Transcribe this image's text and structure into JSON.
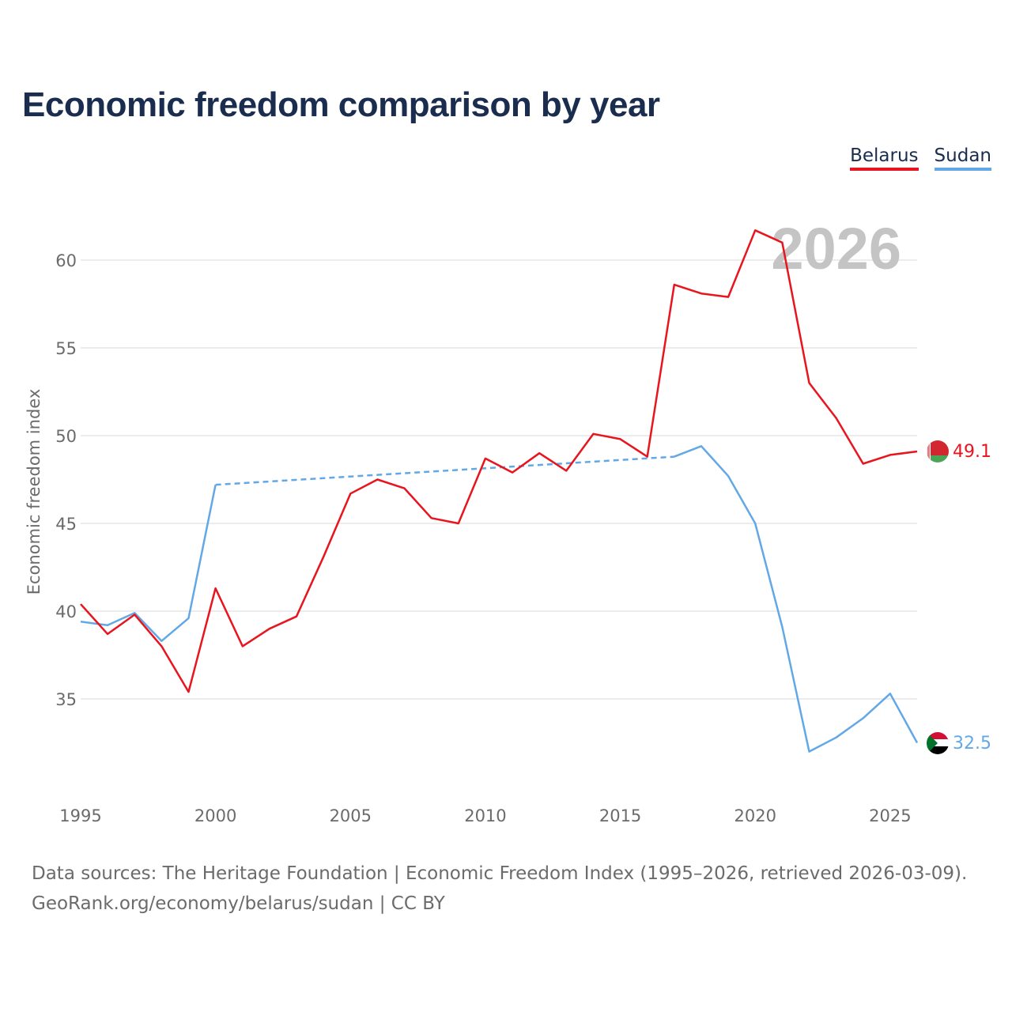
{
  "chart_data": {
    "type": "line",
    "title": "Economic freedom comparison by year",
    "xlabel": "",
    "ylabel": "Economic freedom index",
    "xlim": [
      1995,
      2026
    ],
    "ylim": [
      30,
      63
    ],
    "yticks": [
      35,
      40,
      45,
      50,
      55,
      60
    ],
    "xticks": [
      1995,
      2000,
      2005,
      2010,
      2015,
      2020,
      2025
    ],
    "year_watermark": "2026",
    "series": [
      {
        "name": "Belarus",
        "color": "#e8141e",
        "end_label": "49.1",
        "points": [
          [
            1995,
            40.4
          ],
          [
            1996,
            38.7
          ],
          [
            1997,
            39.8
          ],
          [
            1998,
            38.0
          ],
          [
            1999,
            35.4
          ],
          [
            2000,
            41.3
          ],
          [
            2001,
            38.0
          ],
          [
            2002,
            39.0
          ],
          [
            2003,
            39.7
          ],
          [
            2004,
            43.1
          ],
          [
            2005,
            46.7
          ],
          [
            2006,
            47.5
          ],
          [
            2007,
            47.0
          ],
          [
            2008,
            45.3
          ],
          [
            2009,
            45.0
          ],
          [
            2010,
            48.7
          ],
          [
            2011,
            47.9
          ],
          [
            2012,
            49.0
          ],
          [
            2013,
            48.0
          ],
          [
            2014,
            50.1
          ],
          [
            2015,
            49.8
          ],
          [
            2016,
            48.8
          ],
          [
            2017,
            58.6
          ],
          [
            2018,
            58.1
          ],
          [
            2019,
            57.9
          ],
          [
            2020,
            61.7
          ],
          [
            2021,
            61.0
          ],
          [
            2022,
            53.0
          ],
          [
            2023,
            51.0
          ],
          [
            2024,
            48.4
          ],
          [
            2025,
            48.9
          ],
          [
            2026,
            49.1
          ]
        ]
      },
      {
        "name": "Sudan",
        "color": "#63a8e6",
        "end_label": "32.5",
        "points": [
          [
            1995,
            39.4
          ],
          [
            1996,
            39.2
          ],
          [
            1997,
            39.9
          ],
          [
            1998,
            38.3
          ],
          [
            1999,
            39.6
          ],
          [
            2000,
            47.2
          ],
          [
            2017,
            48.8
          ],
          [
            2018,
            49.4
          ],
          [
            2019,
            47.7
          ],
          [
            2020,
            45.0
          ],
          [
            2021,
            39.1
          ],
          [
            2022,
            32.0
          ],
          [
            2023,
            32.8
          ],
          [
            2024,
            33.9
          ],
          [
            2025,
            35.3
          ],
          [
            2026,
            32.5
          ]
        ],
        "gap": [
          2000,
          2017
        ]
      }
    ]
  },
  "legend": {
    "belarus": "Belarus",
    "sudan": "Sudan"
  },
  "footer": {
    "line1": "Data sources: The Heritage Foundation | Economic Freedom Index (1995–2026, retrieved 2026-03-09).",
    "line2": "GeoRank.org/economy/belarus/sudan | CC BY"
  }
}
